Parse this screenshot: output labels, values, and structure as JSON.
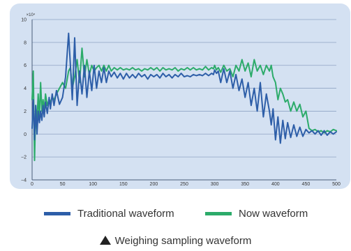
{
  "chart_data": {
    "type": "line",
    "title": "",
    "xlabel": "",
    "ylabel": "",
    "y_exponent_label": "×10⁴",
    "xlim": [
      0,
      500
    ],
    "ylim": [
      -4,
      10
    ],
    "xticks": [
      0,
      50,
      100,
      150,
      200,
      250,
      300,
      350,
      400,
      450,
      500
    ],
    "yticks": [
      -4,
      -2,
      0,
      2,
      4,
      6,
      8,
      10
    ],
    "grid": true,
    "legend_position": "bottom",
    "series": [
      {
        "name": "Traditional waveform",
        "color": "#2d5ea8",
        "x": [
          0,
          2,
          4,
          6,
          8,
          10,
          12,
          14,
          16,
          18,
          20,
          22,
          25,
          28,
          30,
          33,
          36,
          40,
          45,
          50,
          55,
          60,
          63,
          66,
          70,
          74,
          78,
          82,
          86,
          90,
          94,
          98,
          102,
          106,
          110,
          114,
          118,
          122,
          126,
          130,
          135,
          140,
          145,
          150,
          155,
          160,
          165,
          170,
          175,
          180,
          185,
          190,
          195,
          200,
          205,
          210,
          215,
          220,
          225,
          230,
          235,
          240,
          245,
          250,
          255,
          260,
          265,
          270,
          275,
          280,
          285,
          290,
          295,
          298,
          300,
          303,
          306,
          310,
          315,
          320,
          325,
          330,
          335,
          340,
          345,
          350,
          355,
          360,
          365,
          370,
          375,
          380,
          385,
          390,
          393,
          396,
          400,
          404,
          408,
          412,
          416,
          420,
          425,
          430,
          435,
          440,
          445,
          450,
          455,
          460,
          465,
          470,
          475,
          480,
          485,
          490,
          495,
          500
        ],
        "y": [
          0.5,
          3.0,
          -0.5,
          2.5,
          0.0,
          2.0,
          1.0,
          2.0,
          1.2,
          2.5,
          1.5,
          2.8,
          1.8,
          3.2,
          2.2,
          3.5,
          2.5,
          3.8,
          2.6,
          3.2,
          5.0,
          8.8,
          6.0,
          3.0,
          8.4,
          2.5,
          5.5,
          3.5,
          6.0,
          3.2,
          5.5,
          3.8,
          6.0,
          4.0,
          5.5,
          4.5,
          5.8,
          4.5,
          5.5,
          5.0,
          5.4,
          4.9,
          5.3,
          4.8,
          5.3,
          4.9,
          5.2,
          4.9,
          5.3,
          5.0,
          5.2,
          4.8,
          5.2,
          5.0,
          5.2,
          4.9,
          5.3,
          5.0,
          5.2,
          4.9,
          5.2,
          5.0,
          5.3,
          5.0,
          5.1,
          5.0,
          5.2,
          5.1,
          5.2,
          5.1,
          5.3,
          5.1,
          5.3,
          5.2,
          5.6,
          5.3,
          5.5,
          4.5,
          5.7,
          4.5,
          5.5,
          4.0,
          5.2,
          3.8,
          4.8,
          3.2,
          4.5,
          2.5,
          4.0,
          2.0,
          4.5,
          1.5,
          3.5,
          2.0,
          0.8,
          2.2,
          -0.5,
          1.5,
          -0.8,
          1.2,
          -0.4,
          1.0,
          -0.3,
          0.8,
          -0.2,
          0.6,
          -0.2,
          0.4,
          0.1,
          0.3,
          0.0,
          0.3,
          -0.1,
          0.3,
          -0.1,
          0.2,
          0.0,
          0.2
        ]
      },
      {
        "name": "Now waveform",
        "color": "#2cab6a",
        "x": [
          0,
          2,
          4,
          6,
          8,
          10,
          12,
          14,
          16,
          18,
          20,
          22,
          25,
          28,
          30,
          33,
          36,
          40,
          45,
          50,
          55,
          60,
          63,
          66,
          70,
          74,
          78,
          82,
          86,
          90,
          94,
          98,
          102,
          106,
          110,
          114,
          118,
          122,
          126,
          130,
          135,
          140,
          145,
          150,
          155,
          160,
          165,
          170,
          175,
          180,
          185,
          190,
          195,
          200,
          205,
          210,
          215,
          220,
          225,
          230,
          235,
          240,
          245,
          250,
          255,
          260,
          265,
          270,
          275,
          280,
          285,
          290,
          295,
          298,
          300,
          303,
          306,
          310,
          315,
          320,
          325,
          330,
          335,
          340,
          345,
          350,
          355,
          360,
          365,
          370,
          375,
          380,
          385,
          390,
          393,
          396,
          400,
          404,
          408,
          412,
          416,
          420,
          425,
          430,
          435,
          440,
          445,
          450,
          455,
          460,
          465,
          470,
          475,
          480,
          485,
          490,
          495,
          500
        ],
        "y": [
          3.0,
          5.5,
          -2.3,
          2.5,
          1.0,
          3.5,
          1.5,
          4.5,
          2.0,
          3.0,
          2.0,
          3.5,
          2.5,
          3.0,
          2.8,
          3.2,
          3.0,
          3.5,
          4.0,
          4.5,
          4.0,
          5.5,
          5.8,
          4.0,
          5.0,
          6.5,
          4.5,
          7.5,
          5.0,
          6.5,
          5.2,
          6.0,
          5.5,
          5.8,
          6.0,
          5.5,
          6.0,
          5.5,
          6.0,
          5.5,
          5.8,
          5.6,
          5.8,
          5.6,
          5.7,
          5.6,
          5.8,
          5.6,
          5.7,
          5.5,
          5.7,
          5.6,
          5.8,
          5.6,
          5.8,
          5.5,
          5.8,
          5.6,
          5.7,
          5.6,
          5.8,
          5.5,
          5.7,
          5.6,
          5.8,
          5.6,
          5.8,
          5.6,
          5.7,
          5.6,
          5.9,
          5.6,
          5.8,
          5.7,
          6.0,
          5.6,
          5.8,
          5.4,
          6.0,
          5.5,
          5.7,
          5.0,
          6.0,
          5.5,
          6.5,
          5.5,
          6.2,
          5.0,
          6.5,
          5.5,
          6.0,
          5.2,
          6.0,
          5.5,
          6.0,
          5.0,
          4.5,
          3.0,
          4.0,
          3.5,
          2.8,
          3.0,
          2.0,
          2.8,
          2.0,
          2.6,
          1.5,
          2.0,
          0.5,
          0.3,
          0.4,
          0.2,
          0.3,
          0.1,
          0.3,
          0.2,
          0.4,
          0.3
        ]
      }
    ]
  },
  "legend": {
    "traditional_label": "Traditional waveform",
    "now_label": "Now waveform"
  },
  "caption": {
    "text": "Weighing sampling waveform"
  }
}
